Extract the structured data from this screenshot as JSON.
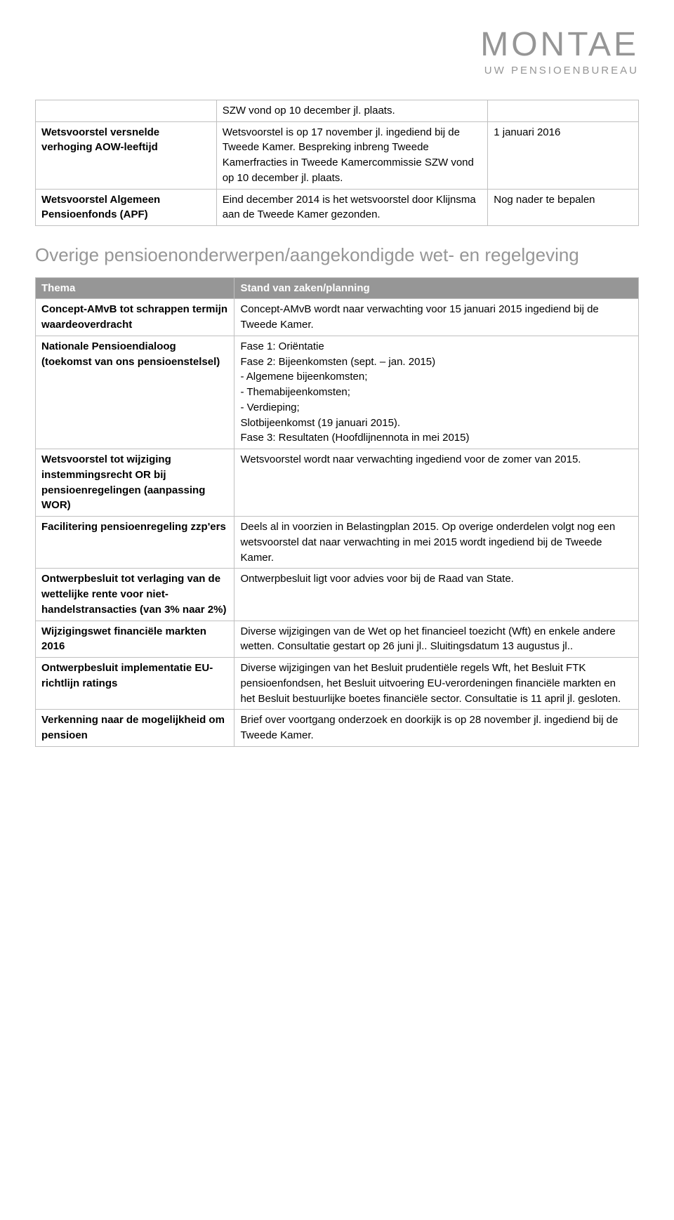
{
  "logo": {
    "main": "MONTAE",
    "sub": "UW PENSIOENBUREAU"
  },
  "table1": {
    "rows": [
      {
        "thema": "",
        "stand": "SZW vond op 10 december jl. plaats.",
        "date": ""
      },
      {
        "thema": "Wetsvoorstel versnelde verhoging AOW-leeftijd",
        "stand": "Wetsvoorstel is op 17 november jl. ingediend bij de Tweede Kamer. Bespreking inbreng Tweede Kamerfracties in Tweede Kamercommissie SZW vond op 10 december jl. plaats.",
        "date": "1 januari 2016"
      },
      {
        "thema": "Wetsvoorstel Algemeen Pensioenfonds (APF)",
        "stand": "Eind december 2014 is het wetsvoorstel door Klijnsma aan de Tweede Kamer gezonden.",
        "date": "Nog nader te bepalen"
      }
    ]
  },
  "sectionTitle": "Overige pensioenonderwerpen/aangekondigde wet- en regelgeving",
  "table2": {
    "headers": {
      "thema": "Thema",
      "stand": "Stand van zaken/planning"
    },
    "rows": [
      {
        "thema": "Concept-AMvB tot schrappen termijn waardeoverdracht",
        "stand": "Concept-AMvB wordt naar verwachting voor 15 januari 2015 ingediend bij de Tweede Kamer."
      },
      {
        "thema": "Nationale Pensioendialoog (toekomst van ons pensioenstelsel)",
        "stand": "Fase 1: Oriëntatie\nFase 2: Bijeenkomsten (sept. – jan. 2015)\n - Algemene bijeenkomsten;\n - Themabijeenkomsten;\n - Verdieping;\nSlotbijeenkomst (19 januari 2015).\nFase 3: Resultaten (Hoofdlijnennota in mei 2015)"
      },
      {
        "thema": "Wetsvoorstel tot wijziging instemmingsrecht OR bij pensioenregelingen (aanpassing WOR)",
        "stand": "Wetsvoorstel wordt naar verwachting ingediend voor de zomer van 2015."
      },
      {
        "thema": "Facilitering pensioenregeling zzp'ers",
        "stand": "Deels al in voorzien in Belastingplan 2015. Op overige onderdelen volgt nog een wetsvoorstel dat naar verwachting in mei 2015 wordt ingediend bij de Tweede Kamer."
      },
      {
        "thema": "Ontwerpbesluit tot verlaging van de wettelijke rente voor niet-handelstransacties (van 3% naar 2%)",
        "stand": "Ontwerpbesluit ligt voor advies voor bij de Raad van State."
      },
      {
        "thema": "Wijzigingswet financiële markten 2016",
        "stand": "Diverse wijzigingen van de Wet op het financieel toezicht (Wft) en enkele andere wetten. Consultatie gestart op 26 juni jl.. Sluitingsdatum 13 augustus jl.."
      },
      {
        "thema": "Ontwerpbesluit implementatie EU-richtlijn ratings",
        "stand": "Diverse wijzigingen van het Besluit prudentiële regels Wft, het Besluit FTK pensioenfondsen, het Besluit uitvoering EU-verordeningen financiële markten en het Besluit bestuurlijke boetes financiële sector. Consultatie is 11 april jl. gesloten."
      },
      {
        "thema": "Verkenning naar de mogelijkheid om pensioen",
        "stand": "Brief over voortgang onderzoek en doorkijk is op 28 november jl. ingediend bij de Tweede Kamer."
      }
    ]
  }
}
